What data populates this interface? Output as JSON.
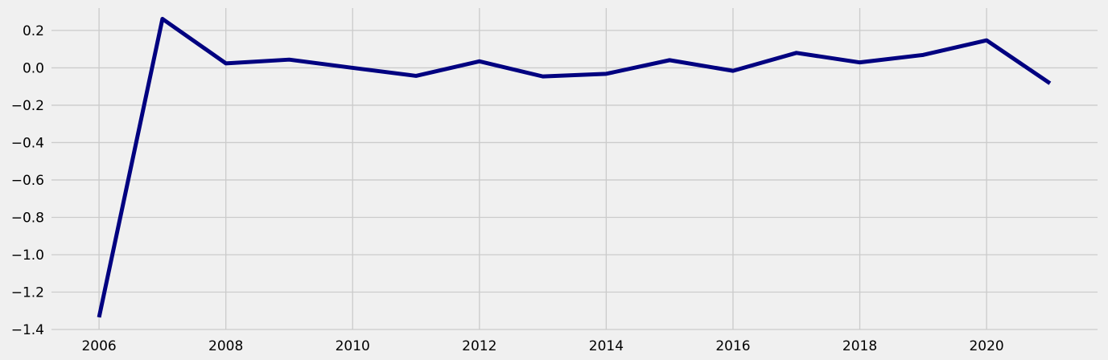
{
  "chart_data": {
    "type": "line",
    "title": "",
    "xlabel": "",
    "ylabel": "",
    "grid": true,
    "legend": "none",
    "xlim": [
      2005.25,
      2021.75
    ],
    "ylim": [
      -1.4,
      0.32
    ],
    "x_ticks": [
      2006,
      2008,
      2010,
      2012,
      2014,
      2016,
      2018,
      2020
    ],
    "y_ticks": [
      -1.4,
      -1.2,
      -1.0,
      -0.8,
      -0.6,
      -0.4,
      -0.2,
      0.0,
      0.2
    ],
    "y_tick_labels": [
      "−1.4",
      "−1.2",
      "−1.0",
      "−0.8",
      "−0.6",
      "−0.4",
      "−0.2",
      "0.0",
      "0.2"
    ],
    "x": [
      2006,
      2007,
      2008,
      2009,
      2010,
      2011,
      2012,
      2013,
      2014,
      2015,
      2016,
      2017,
      2018,
      2019,
      2020,
      2021
    ],
    "series": [
      {
        "values": [
          -1.335,
          0.262,
          0.024,
          0.044,
          0.0,
          -0.043,
          0.035,
          -0.046,
          -0.032,
          0.041,
          -0.016,
          0.08,
          0.029,
          0.069,
          0.147,
          -0.083
        ],
        "color": "#000080"
      }
    ]
  }
}
